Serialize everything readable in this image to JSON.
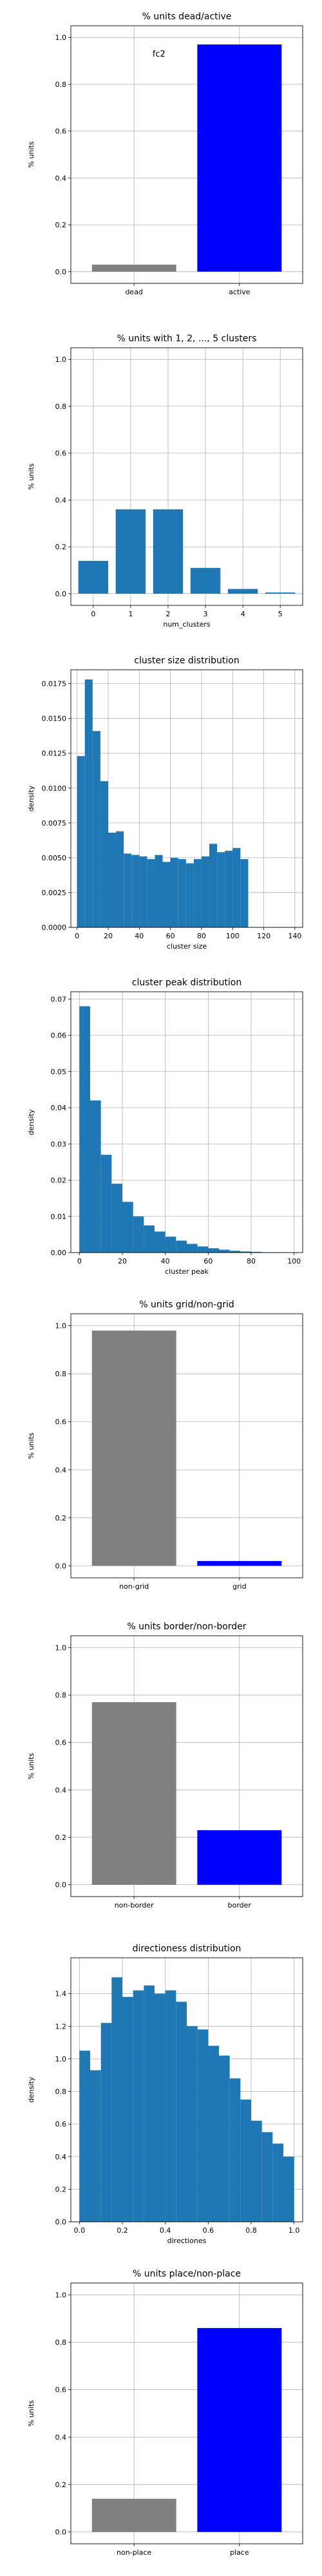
{
  "colors": {
    "hist": "#1f77b4",
    "gray": "#808080",
    "blue": "#0000ff"
  },
  "chart_data": [
    {
      "type": "bar",
      "title": "% units dead/active",
      "xlabel": "",
      "ylabel": "% units",
      "categories": [
        "dead",
        "active"
      ],
      "values": [
        0.03,
        0.97
      ],
      "bar_colors": [
        "gray",
        "blue"
      ],
      "ylim": [
        -0.05,
        1.05
      ],
      "yticks": [
        "0.0",
        "0.2",
        "0.4",
        "0.6",
        "0.8",
        "1.0"
      ],
      "annotation": "fc2",
      "grid": true
    },
    {
      "type": "bar",
      "title": "% units with 1, 2, ..., 5 clusters",
      "xlabel": "num_clusters",
      "ylabel": "% units",
      "categories": [
        "0",
        "1",
        "2",
        "3",
        "4",
        "5"
      ],
      "values": [
        0.14,
        0.36,
        0.36,
        0.11,
        0.02,
        0.005
      ],
      "bar_colors": [
        "hist",
        "hist",
        "hist",
        "hist",
        "hist",
        "hist"
      ],
      "ylim": [
        -0.05,
        1.05
      ],
      "yticks": [
        "0.0",
        "0.2",
        "0.4",
        "0.6",
        "0.8",
        "1.0"
      ],
      "grid": true
    },
    {
      "type": "bar",
      "title": "cluster size distribution",
      "xlabel": "cluster size",
      "ylabel": "density",
      "bin_start": 0,
      "bin_width": 5,
      "values": [
        0.0123,
        0.0178,
        0.0141,
        0.0105,
        0.0068,
        0.0069,
        0.0053,
        0.0052,
        0.0051,
        0.0049,
        0.0052,
        0.0047,
        0.005,
        0.0049,
        0.0046,
        0.0049,
        0.0051,
        0.006,
        0.0054,
        0.0055,
        0.0057,
        0.0049
      ],
      "xlim": [
        -4,
        145
      ],
      "xticks": [
        0,
        20,
        40,
        60,
        80,
        100,
        120,
        140
      ],
      "ylim": [
        0,
        0.0185
      ],
      "yticks": [
        "0.0000",
        "0.0025",
        "0.0050",
        "0.0075",
        "0.0100",
        "0.0125",
        "0.0150",
        "0.0175"
      ],
      "grid": true
    },
    {
      "type": "bar",
      "title": "cluster peak distribution",
      "xlabel": "cluster peak",
      "ylabel": "density",
      "bin_start": 0,
      "bin_width": 5,
      "values": [
        0.068,
        0.042,
        0.027,
        0.019,
        0.014,
        0.01,
        0.0075,
        0.0058,
        0.0044,
        0.0033,
        0.0024,
        0.0017,
        0.0012,
        0.0008,
        0.0005,
        0.0003,
        0.0002,
        0.0001,
        0.0001,
        5e-05
      ],
      "xlim": [
        -4,
        104
      ],
      "xticks": [
        0,
        20,
        40,
        60,
        80,
        100
      ],
      "ylim": [
        0,
        0.072
      ],
      "yticks": [
        "0.00",
        "0.01",
        "0.02",
        "0.03",
        "0.04",
        "0.05",
        "0.06",
        "0.07"
      ],
      "grid": true
    },
    {
      "type": "bar",
      "title": "% units grid/non-grid",
      "xlabel": "",
      "ylabel": "% units",
      "categories": [
        "non-grid",
        "grid"
      ],
      "values": [
        0.98,
        0.02
      ],
      "bar_colors": [
        "gray",
        "blue"
      ],
      "ylim": [
        -0.05,
        1.05
      ],
      "yticks": [
        "0.0",
        "0.2",
        "0.4",
        "0.6",
        "0.8",
        "1.0"
      ],
      "grid": true
    },
    {
      "type": "bar",
      "title": "% units border/non-border",
      "xlabel": "",
      "ylabel": "% units",
      "categories": [
        "non-border",
        "border"
      ],
      "values": [
        0.77,
        0.23
      ],
      "bar_colors": [
        "gray",
        "blue"
      ],
      "ylim": [
        -0.05,
        1.05
      ],
      "yticks": [
        "0.0",
        "0.2",
        "0.4",
        "0.6",
        "0.8",
        "1.0"
      ],
      "grid": true
    },
    {
      "type": "bar",
      "title": "directioness distribution",
      "xlabel": "directiones",
      "ylabel": "density",
      "bin_start": 0,
      "bin_width": 0.05,
      "values": [
        1.05,
        0.93,
        1.22,
        1.5,
        1.38,
        1.42,
        1.45,
        1.4,
        1.42,
        1.35,
        1.2,
        1.18,
        1.08,
        1.02,
        0.88,
        0.75,
        0.62,
        0.55,
        0.48,
        0.4
      ],
      "xlim": [
        -0.04,
        1.04
      ],
      "xticks": [
        "0.0",
        "0.2",
        "0.4",
        "0.6",
        "0.8",
        "1.0"
      ],
      "ylim": [
        0,
        1.62
      ],
      "yticks": [
        "0.0",
        "0.2",
        "0.4",
        "0.6",
        "0.8",
        "1.0",
        "1.2",
        "1.4"
      ],
      "grid": true
    },
    {
      "type": "bar",
      "title": "% units place/non-place",
      "xlabel": "",
      "ylabel": "% units",
      "categories": [
        "non-place",
        "place"
      ],
      "values": [
        0.14,
        0.86
      ],
      "bar_colors": [
        "gray",
        "blue"
      ],
      "ylim": [
        -0.05,
        1.05
      ],
      "yticks": [
        "0.0",
        "0.2",
        "0.4",
        "0.6",
        "0.8",
        "1.0"
      ],
      "grid": true
    }
  ]
}
